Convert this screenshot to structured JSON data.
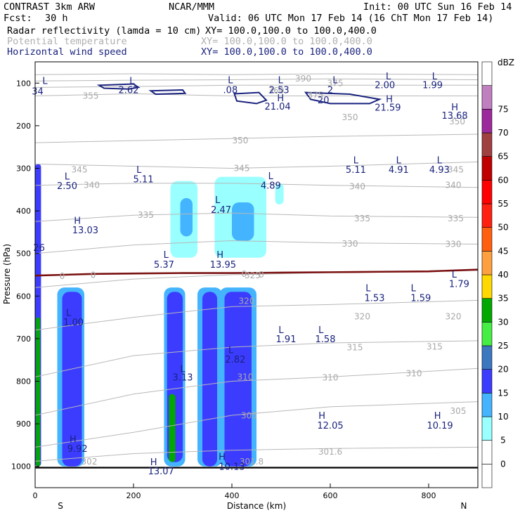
{
  "header": {
    "model": "CONTRAST  3km ARW",
    "org": "NCAR/MMM",
    "init": "Init: 00 UTC Sun 16 Feb 14",
    "fcst_label": "Fcst:",
    "fcst_value": "30 h",
    "valid": "Valid: 06 UTC Mon 17 Feb 14 (16 ChT Mon 17 Feb 14)",
    "fields": [
      {
        "name": "Radar reflectivity (lamda = 10 cm)",
        "range": "XY= 100.0,100.0 to 100.0,400.0",
        "color": "#000000"
      },
      {
        "name": "Potential temperature",
        "range": "XY= 100.0,100.0 to 100.0,400.0",
        "color": "#b0b0b0"
      },
      {
        "name": "Horizontal wind speed",
        "range": "XY= 100.0,100.0 to 100.0,400.0",
        "color": "#1a237e"
      }
    ]
  },
  "chart_data": {
    "type": "cross-section",
    "xlabel": "Distance (km)",
    "ylabel": "Pressure (hPa)",
    "xlim": [
      0,
      900
    ],
    "ylim": [
      1050,
      50
    ],
    "x_ticks": [
      0,
      200,
      400,
      600,
      800
    ],
    "y_ticks": [
      100,
      200,
      300,
      400,
      500,
      600,
      700,
      800,
      900,
      1000
    ],
    "x_end_labels": {
      "left": "S",
      "right": "N"
    },
    "colorbar": {
      "unit": "dBZ",
      "levels": [
        0,
        5,
        10,
        15,
        20,
        25,
        30,
        35,
        40,
        45,
        50,
        55,
        60,
        65,
        70,
        75
      ],
      "colors": [
        "#ffffff",
        "#ffffff",
        "#99ffff",
        "#44b4ff",
        "#3c3cff",
        "#3c78c0",
        "#44ee44",
        "#00a800",
        "#ffd800",
        "#ffa040",
        "#ff6010",
        "#ff2010",
        "#ff0000",
        "#c00000",
        "#a04040",
        "#9c2a9c",
        "#c080c0",
        "#ffffff"
      ]
    },
    "theta_contours": [
      {
        "level": 300,
        "points": [
          [
            0,
            988
          ],
          [
            200,
            970
          ],
          [
            400,
            962
          ],
          [
            600,
            958
          ],
          [
            900,
            955
          ]
        ]
      },
      {
        "level": 305,
        "points": [
          [
            0,
            955
          ],
          [
            200,
            920
          ],
          [
            400,
            880
          ],
          [
            600,
            860
          ],
          [
            900,
            848
          ]
        ]
      },
      {
        "level": 310,
        "points": [
          [
            0,
            880
          ],
          [
            200,
            830
          ],
          [
            400,
            800
          ],
          [
            600,
            790
          ],
          [
            900,
            770
          ]
        ]
      },
      {
        "level": 315,
        "points": [
          [
            0,
            790
          ],
          [
            200,
            740
          ],
          [
            400,
            720
          ],
          [
            600,
            710
          ],
          [
            900,
            705
          ]
        ]
      },
      {
        "level": 320,
        "points": [
          [
            0,
            680
          ],
          [
            200,
            650
          ],
          [
            400,
            625
          ],
          [
            600,
            620
          ],
          [
            900,
            610
          ]
        ]
      },
      {
        "level": 325,
        "points": [
          [
            0,
            580
          ],
          [
            200,
            560
          ],
          [
            400,
            550
          ],
          [
            600,
            545
          ],
          [
            900,
            540
          ]
        ]
      },
      {
        "level": 330,
        "points": [
          [
            0,
            500
          ],
          [
            200,
            480
          ],
          [
            400,
            470
          ],
          [
            600,
            475
          ],
          [
            900,
            478
          ]
        ]
      },
      {
        "level": 335,
        "points": [
          [
            0,
            425
          ],
          [
            200,
            410
          ],
          [
            400,
            405
          ],
          [
            600,
            412
          ],
          [
            900,
            415
          ]
        ]
      },
      {
        "level": 340,
        "points": [
          [
            0,
            340
          ],
          [
            200,
            335
          ],
          [
            400,
            335
          ],
          [
            600,
            340
          ],
          [
            900,
            345
          ]
        ]
      },
      {
        "level": 345,
        "points": [
          [
            0,
            290
          ],
          [
            200,
            295
          ],
          [
            400,
            300
          ],
          [
            600,
            295
          ],
          [
            900,
            285
          ]
        ]
      },
      {
        "level": 350,
        "points": [
          [
            0,
            240
          ],
          [
            200,
            235
          ],
          [
            400,
            230
          ],
          [
            600,
            225
          ],
          [
            900,
            220
          ]
        ]
      },
      {
        "level": 355,
        "points": [
          [
            0,
            130
          ],
          [
            200,
            125
          ],
          [
            400,
            130
          ],
          [
            600,
            130
          ],
          [
            900,
            130
          ]
        ]
      },
      {
        "level": 360,
        "points": [
          [
            0,
            110
          ],
          [
            200,
            108
          ],
          [
            400,
            105
          ],
          [
            600,
            105
          ],
          [
            900,
            105
          ]
        ]
      },
      {
        "level": 375,
        "points": [
          [
            0,
            95
          ],
          [
            200,
            93
          ],
          [
            400,
            92
          ],
          [
            600,
            90
          ],
          [
            900,
            92
          ]
        ]
      },
      {
        "level": 390,
        "points": [
          [
            0,
            80
          ],
          [
            200,
            78
          ],
          [
            400,
            80
          ],
          [
            600,
            78
          ],
          [
            900,
            80
          ]
        ]
      }
    ],
    "theta_labels": [
      {
        "x": 113,
        "p": 130,
        "text": "355"
      },
      {
        "x": 490,
        "p": 118,
        "text": "360"
      },
      {
        "x": 570,
        "p": 128,
        "text": "375"
      },
      {
        "x": 545,
        "p": 90,
        "text": "390"
      },
      {
        "x": 610,
        "p": 100,
        "text": "375"
      },
      {
        "x": 417,
        "p": 235,
        "text": "350"
      },
      {
        "x": 640,
        "p": 180,
        "text": "350"
      },
      {
        "x": 858,
        "p": 190,
        "text": "350"
      },
      {
        "x": 90,
        "p": 303,
        "text": "345"
      },
      {
        "x": 420,
        "p": 300,
        "text": "345"
      },
      {
        "x": 855,
        "p": 303,
        "text": "345"
      },
      {
        "x": 115,
        "p": 340,
        "text": "340"
      },
      {
        "x": 655,
        "p": 343,
        "text": "340"
      },
      {
        "x": 850,
        "p": 340,
        "text": "340"
      },
      {
        "x": 225,
        "p": 410,
        "text": "335"
      },
      {
        "x": 665,
        "p": 418,
        "text": "335"
      },
      {
        "x": 855,
        "p": 418,
        "text": "335"
      },
      {
        "x": 640,
        "p": 477,
        "text": "330"
      },
      {
        "x": 850,
        "p": 478,
        "text": "330"
      },
      {
        "x": 442,
        "p": 552,
        "text": "325"
      },
      {
        "x": 430,
        "p": 612,
        "text": "320"
      },
      {
        "x": 665,
        "p": 648,
        "text": "320"
      },
      {
        "x": 850,
        "p": 648,
        "text": "320"
      },
      {
        "x": 650,
        "p": 721,
        "text": "315"
      },
      {
        "x": 812,
        "p": 719,
        "text": "315"
      },
      {
        "x": 427,
        "p": 790,
        "text": "310"
      },
      {
        "x": 600,
        "p": 792,
        "text": "310"
      },
      {
        "x": 770,
        "p": 782,
        "text": "310"
      },
      {
        "x": 435,
        "p": 881,
        "text": "305"
      },
      {
        "x": 860,
        "p": 870,
        "text": "305"
      },
      {
        "x": 110,
        "p": 989,
        "text": "302"
      },
      {
        "x": 600,
        "p": 966,
        "text": "301.6"
      },
      {
        "x": 440,
        "p": 989,
        "text": "301.8"
      }
    ],
    "zero_line_labels": [
      {
        "x": 55,
        "p": 553,
        "text": "0"
      },
      {
        "x": 118,
        "p": 551,
        "text": "0"
      },
      {
        "x": 425,
        "p": 548,
        "text": "0"
      },
      {
        "x": 460,
        "p": 550,
        "text": "0"
      }
    ],
    "wind_contours": [
      {
        "level": 20,
        "label": "20",
        "label_x": 586,
        "label_p": 147
      }
    ],
    "wind_extrema": [
      {
        "type": "L",
        "value": "34",
        "x": 20,
        "p": 95,
        "value_x": 5,
        "value_p": 120
      },
      {
        "type": "L",
        "value": "2.62",
        "x": 197,
        "p": 95,
        "value_x": 190,
        "value_p": 117
      },
      {
        "type": "L",
        "value": ".08",
        "x": 397,
        "p": 94,
        "value_x": 397,
        "value_p": 117
      },
      {
        "type": "L",
        "value": "2.53",
        "x": 499,
        "p": 94,
        "value_x": 496,
        "value_p": 117
      },
      {
        "type": "L",
        "value": "2",
        "x": 610,
        "p": 94,
        "value_x": 600,
        "value_p": 117
      },
      {
        "type": "L",
        "value": "2.00",
        "x": 718,
        "p": 85,
        "value_x": 711,
        "value_p": 105
      },
      {
        "type": "L",
        "value": "1.99",
        "x": 812,
        "p": 85,
        "value_x": 808,
        "value_p": 105
      },
      {
        "type": "H",
        "value": "21.04",
        "x": 499,
        "p": 136,
        "value_x": 493,
        "value_p": 156
      },
      {
        "type": "H",
        "value": "21.59",
        "x": 720,
        "p": 138,
        "value_x": 717,
        "value_p": 158
      },
      {
        "type": "H",
        "value": "13.68",
        "x": 853,
        "p": 157,
        "value_x": 853,
        "value_p": 177
      },
      {
        "type": "L",
        "value": "5.11",
        "x": 652,
        "p": 282,
        "value_x": 652,
        "value_p": 304
      },
      {
        "type": "L",
        "value": "4.91",
        "x": 739,
        "p": 282,
        "value_x": 739,
        "value_p": 304
      },
      {
        "type": "L",
        "value": "4.93",
        "x": 822,
        "p": 282,
        "value_x": 822,
        "value_p": 304
      },
      {
        "type": "L",
        "value": "2.50",
        "x": 65,
        "p": 320,
        "value_x": 65,
        "value_p": 342
      },
      {
        "type": "L",
        "value": "5.11",
        "x": 211,
        "p": 304,
        "value_x": 220,
        "value_p": 326
      },
      {
        "type": "L",
        "value": "4.89",
        "x": 479,
        "p": 319,
        "value_x": 479,
        "value_p": 341
      },
      {
        "type": "L",
        "value": "2.47",
        "x": 371,
        "p": 375,
        "value_x": 378,
        "value_p": 398
      },
      {
        "type": "H",
        "value": "13.03",
        "x": 86,
        "p": 424,
        "value_x": 102,
        "value_p": 446
      },
      {
        "type": "L",
        "value": "5.37",
        "x": 266,
        "p": 504,
        "value_x": 262,
        "value_p": 527
      },
      {
        "type": "H",
        "value": "13.95",
        "x": 376,
        "p": 504,
        "value_x": 382,
        "value_p": 527
      },
      {
        "type": "L",
        "value": "1.79",
        "x": 852,
        "p": 550,
        "value_x": 862,
        "value_p": 572
      },
      {
        "type": "L",
        "value": "1.53",
        "x": 677,
        "p": 582,
        "value_x": 690,
        "value_p": 605
      },
      {
        "type": "L",
        "value": "1.59",
        "x": 769,
        "p": 582,
        "value_x": 784,
        "value_p": 605
      },
      {
        "type": "L",
        "value": "1.00",
        "x": 68,
        "p": 640,
        "value_x": 78,
        "value_p": 662
      },
      {
        "type": "L",
        "value": "1.91",
        "x": 500,
        "p": 680,
        "value_x": 510,
        "value_p": 702
      },
      {
        "type": "L",
        "value": "1.58",
        "x": 581,
        "p": 680,
        "value_x": 590,
        "value_p": 702
      },
      {
        "type": "L",
        "value": "2.82",
        "x": 398,
        "p": 727,
        "value_x": 407,
        "value_p": 750
      },
      {
        "type": "L",
        "value": "3.13",
        "x": 300,
        "p": 772,
        "value_x": 300,
        "value_p": 792
      },
      {
        "type": "H",
        "value": "12.05",
        "x": 583,
        "p": 882,
        "value_x": 600,
        "value_p": 905
      },
      {
        "type": "H",
        "value": "10.19",
        "x": 818,
        "p": 882,
        "value_x": 823,
        "value_p": 905
      },
      {
        "type": "H",
        "value": "9.92",
        "x": 77,
        "p": 937,
        "value_x": 86,
        "value_p": 959
      },
      {
        "type": "H",
        "value": "10.13",
        "x": 380,
        "p": 978,
        "value_x": 400,
        "value_p": 1001
      },
      {
        "type": "H",
        "value": "13.07",
        "x": 241,
        "p": 991,
        "value_x": 256,
        "value_p": 1012
      },
      {
        "type": "26",
        "value": "26",
        "x": 8,
        "p": 487,
        "value_x": 8,
        "value_p": 487
      }
    ],
    "reflectivity_cells": [
      {
        "x0": 0,
        "x1": 12,
        "p_top": 290,
        "p_bot": 1000,
        "dbz": 15
      },
      {
        "x0": 2,
        "x1": 10,
        "p_top": 650,
        "p_bot": 1000,
        "dbz": 30
      },
      {
        "x0": 45,
        "x1": 100,
        "p_top": 580,
        "p_bot": 1000,
        "dbz": 10
      },
      {
        "x0": 55,
        "x1": 95,
        "p_top": 590,
        "p_bot": 1000,
        "dbz": 15
      },
      {
        "x0": 262,
        "x1": 305,
        "p_top": 580,
        "p_bot": 1000,
        "dbz": 10
      },
      {
        "x0": 268,
        "x1": 300,
        "p_top": 590,
        "p_bot": 990,
        "dbz": 15
      },
      {
        "x0": 272,
        "x1": 285,
        "p_top": 830,
        "p_bot": 990,
        "dbz": 30
      },
      {
        "x0": 330,
        "x1": 380,
        "p_top": 580,
        "p_bot": 1000,
        "dbz": 10
      },
      {
        "x0": 340,
        "x1": 370,
        "p_top": 590,
        "p_bot": 1000,
        "dbz": 15
      },
      {
        "x0": 375,
        "x1": 450,
        "p_top": 580,
        "p_bot": 1000,
        "dbz": 10
      },
      {
        "x0": 385,
        "x1": 440,
        "p_top": 590,
        "p_bot": 1000,
        "dbz": 15
      },
      {
        "x0": 275,
        "x1": 330,
        "p_top": 330,
        "p_bot": 510,
        "dbz": 5
      },
      {
        "x0": 295,
        "x1": 320,
        "p_top": 370,
        "p_bot": 460,
        "dbz": 10
      },
      {
        "x0": 365,
        "x1": 470,
        "p_top": 320,
        "p_bot": 510,
        "dbz": 5
      },
      {
        "x0": 400,
        "x1": 445,
        "p_top": 380,
        "p_bot": 470,
        "dbz": 10
      },
      {
        "x0": 488,
        "x1": 505,
        "p_top": 335,
        "p_bot": 385,
        "dbz": 5
      }
    ]
  }
}
